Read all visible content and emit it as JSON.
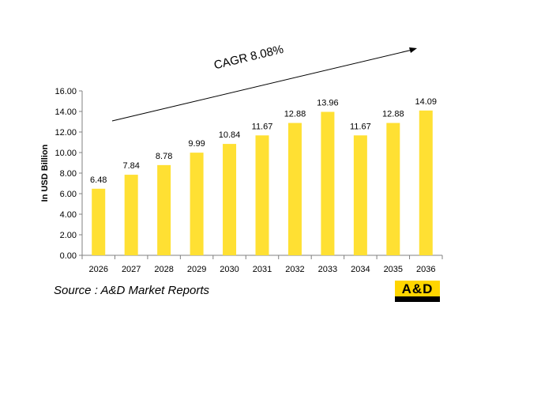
{
  "chart_data": {
    "type": "bar",
    "categories": [
      "2026",
      "2027",
      "2028",
      "2029",
      "2030",
      "2031",
      "2032",
      "2033",
      "2034",
      "2035",
      "2036"
    ],
    "values": [
      6.48,
      7.84,
      8.78,
      9.99,
      10.84,
      11.67,
      12.88,
      13.96,
      11.67,
      12.88,
      14.09
    ],
    "value_labels": [
      "6.48",
      "7.84",
      "8.78",
      "9.99",
      "10.84",
      "11.67",
      "12.88",
      "13.96",
      "11.67",
      "12.88",
      "14.09"
    ],
    "ylabel": "In USD Billion",
    "ylim": [
      0,
      16
    ],
    "yticks": [
      "0.00",
      "2.00",
      "4.00",
      "6.00",
      "8.00",
      "10.00",
      "12.00",
      "14.00",
      "16.00"
    ],
    "annotation": "CAGR 8.08%",
    "bar_color": "#ffe033",
    "grid": false
  },
  "source_text": "Source : A&D Market Reports",
  "logo": {
    "text": "A&D",
    "brand_color": "#ffd500"
  }
}
